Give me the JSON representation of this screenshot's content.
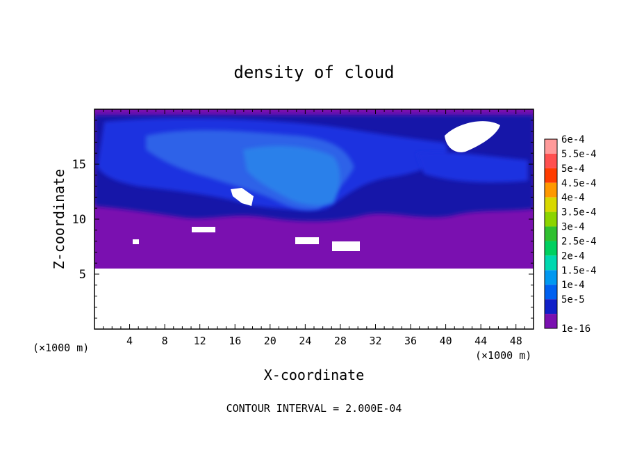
{
  "chart_data": {
    "type": "heatmap",
    "title": "density of cloud",
    "xlabel": "X-coordinate",
    "ylabel": "Z-coordinate",
    "x_unit_label": "(×1000 m)",
    "y_unit_label": "(×1000 m)",
    "xlim": [
      0,
      50
    ],
    "ylim": [
      0,
      20
    ],
    "x_ticks": [
      "4",
      "8",
      "12",
      "16",
      "20",
      "24",
      "28",
      "32",
      "36",
      "40",
      "44",
      "48"
    ],
    "y_ticks": [
      "5",
      "10",
      "15"
    ],
    "x_tick_values": [
      4,
      8,
      12,
      16,
      20,
      24,
      28,
      32,
      36,
      40,
      44,
      48
    ],
    "y_tick_values": [
      5,
      10,
      15
    ],
    "footer": "CONTOUR INTERVAL = 2.000E-04",
    "colorbar": {
      "labels": [
        "6e-4",
        "5.5e-4",
        "5e-4",
        "4.5e-4",
        "4e-4",
        "3.5e-4",
        "3e-4",
        "2.5e-4",
        "2e-4",
        "1.5e-4",
        "1e-4",
        "5e-5",
        "1e-16"
      ],
      "colors": [
        "#ff9a9a",
        "#ff5050",
        "#ff3c00",
        "#ff9800",
        "#d8d800",
        "#8cd400",
        "#30c030",
        "#00d060",
        "#00d8b0",
        "#0098f0",
        "#0060f0",
        "#1020c8",
        "#7a10b0"
      ]
    },
    "fields": {
      "region_colors": {
        "deep_purple": "#6e12b8",
        "purple": "#7a10b0",
        "dark_blue": "#1418a8",
        "blue": "#1a30e0",
        "light_blue": "#2d62e8",
        "sky_blue": "#2c80ea"
      }
    }
  }
}
